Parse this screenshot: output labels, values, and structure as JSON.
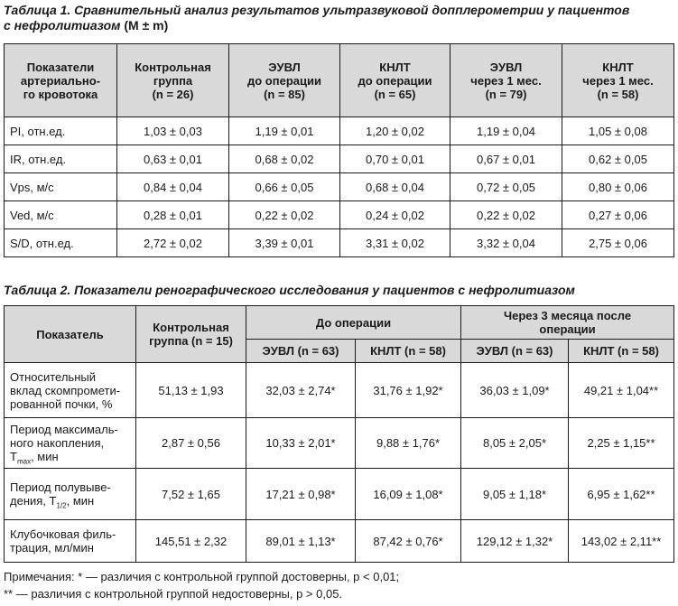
{
  "table1": {
    "caption_lead": "Таблица 1. Сравнительный анализ результатов ультразвуковой допплерометрии у пациентов",
    "caption_tail": "с нефролитиазом",
    "caption_stat": "(M ± m)",
    "headers": [
      [
        "Показатели",
        "артериально-",
        "го кровотока"
      ],
      [
        "Контрольная",
        "группа",
        "(n = 26)"
      ],
      [
        "ЭУВЛ",
        "до операции",
        "(n = 85)"
      ],
      [
        "КНЛТ",
        "до операции",
        "(n = 65)"
      ],
      [
        "ЭУВЛ",
        "через 1 мес.",
        "(n = 79)"
      ],
      [
        "КНЛТ",
        "через 1 мес.",
        "(n = 58)"
      ]
    ],
    "rows": [
      [
        "PI, отн.ед.",
        "1,03 ± 0,03",
        "1,19 ± 0,01",
        "1,20 ± 0,02",
        "1,19 ± 0,04",
        "1,05 ± 0,08"
      ],
      [
        "IR, отн.ед.",
        "0,63 ± 0,01",
        "0,68 ± 0,02",
        "0,70 ± 0,01",
        "0,67 ± 0,01",
        "0,62 ± 0,05"
      ],
      [
        "Vps, м/с",
        "0,84 ± 0,04",
        "0,66 ± 0,05",
        "0,68 ± 0,04",
        "0,72 ± 0,05",
        "0,80 ± 0,06"
      ],
      [
        "Ved, м/с",
        "0,28 ± 0,01",
        "0,22 ± 0,02",
        "0,24 ± 0,02",
        "0,22 ± 0,02",
        "0,27 ± 0,06"
      ],
      [
        "S/D, отн.ед.",
        "2,72 ± 0,02",
        "3,39 ± 0,01",
        "3,31 ± 0,02",
        "3,32 ± 0,04",
        "2,75 ± 0,06"
      ]
    ]
  },
  "table2": {
    "caption": "Таблица 2. Показатели ренографического исследования у пациентов с нефролитиазом",
    "header_indicator": "Показатель",
    "header_control": [
      "Контрольная",
      "группа (n = 15)"
    ],
    "header_before": "До операции",
    "header_after": [
      "Через 3 месяца после",
      "операции"
    ],
    "sub_headers": [
      "ЭУВЛ (n = 63)",
      "КНЛТ (n = 58)",
      "ЭУВЛ (n = 63)",
      "КНЛТ (n = 58)"
    ],
    "rows": [
      {
        "label_lines": [
          "Относительный",
          "вклад скомпромети-",
          "рованной почки, %"
        ],
        "values": [
          "51,13 ± 1,93",
          "32,03 ± 2,74*",
          "31,76 ± 1,92*",
          "36,03 ± 1,09*",
          "49,21 ± 1,04**"
        ]
      },
      {
        "label_lines": [
          "Период максималь-",
          "ного накопления,"
        ],
        "label_sym": "T",
        "label_sub": "max",
        "label_unit": ", мин",
        "values": [
          "2,87 ± 0,56",
          "10,33 ± 2,01*",
          "9,88 ± 1,76*",
          "8,05 ± 2,05*",
          "2,25 ± 1,15**"
        ]
      },
      {
        "label_lines": [
          "Период полувыве-"
        ],
        "label_prefix": "дения,",
        "label_sym": "T",
        "label_sub": "1/2",
        "label_unit": ", мин",
        "values": [
          "7,52 ± 1,65",
          "17,21 ± 0,98*",
          "16,09 ± 1,08*",
          "9,05 ± 1,18*",
          "6,95 ± 1,62**"
        ]
      },
      {
        "label_lines": [
          "Клубочковая филь-",
          "трация, мл/мин"
        ],
        "values": [
          "145,51 ± 2,32",
          "89,01 ± 1,13*",
          "87,42 ± 0,76*",
          "129,12 ± 1,32*",
          "143,02 ± 2,11**"
        ]
      }
    ]
  },
  "notes": [
    "Примечания: * — различия с контрольной группой достоверны, p < 0,01;",
    "** — различия с контрольной группой недостоверны, p > 0,05."
  ]
}
